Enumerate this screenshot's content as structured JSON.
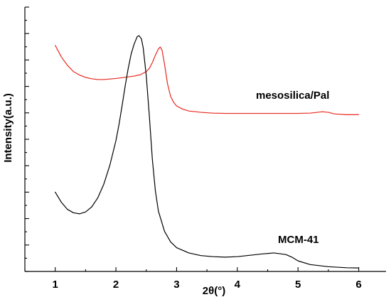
{
  "chart_data": {
    "type": "line",
    "xlabel": "2θ(°)",
    "ylabel": "Intensity(a.u.)",
    "xlim": [
      0.5,
      6.45
    ],
    "ylim": [
      0,
      10
    ],
    "x_ticks": [
      1,
      2,
      3,
      4,
      5,
      6
    ],
    "grid": false,
    "colors": {
      "mesosilica_pal": "#e8281e",
      "mcm41": "#000000",
      "axis": "#000000"
    },
    "series": [
      {
        "name": "mesosilica/Pal",
        "color": "#e8281e",
        "x": [
          1.0,
          1.1,
          1.2,
          1.3,
          1.4,
          1.5,
          1.6,
          1.7,
          1.8,
          1.9,
          2.0,
          2.1,
          2.2,
          2.3,
          2.4,
          2.5,
          2.55,
          2.6,
          2.65,
          2.7,
          2.73,
          2.76,
          2.8,
          2.85,
          2.9,
          2.95,
          3.0,
          3.1,
          3.2,
          3.4,
          3.6,
          3.8,
          4.0,
          4.5,
          5.0,
          5.2,
          5.4,
          5.5,
          5.6,
          5.8,
          6.0
        ],
        "y": [
          8.55,
          8.12,
          7.8,
          7.56,
          7.43,
          7.34,
          7.29,
          7.26,
          7.26,
          7.28,
          7.3,
          7.33,
          7.36,
          7.39,
          7.44,
          7.56,
          7.68,
          7.9,
          8.18,
          8.42,
          8.49,
          8.37,
          7.85,
          7.1,
          6.63,
          6.4,
          6.26,
          6.14,
          6.07,
          6.02,
          5.99,
          5.98,
          5.98,
          5.98,
          5.98,
          5.99,
          6.04,
          6.02,
          5.96,
          5.93,
          5.93
        ]
      },
      {
        "name": "MCM-41",
        "color": "#000000",
        "x": [
          1.0,
          1.1,
          1.2,
          1.3,
          1.4,
          1.5,
          1.6,
          1.7,
          1.8,
          1.9,
          2.0,
          2.05,
          2.1,
          2.15,
          2.2,
          2.25,
          2.3,
          2.35,
          2.38,
          2.42,
          2.45,
          2.5,
          2.55,
          2.6,
          2.65,
          2.7,
          2.8,
          2.9,
          3.0,
          3.2,
          3.4,
          3.6,
          3.8,
          4.0,
          4.2,
          4.4,
          4.6,
          4.8,
          4.9,
          5.0,
          5.2,
          5.5,
          5.8,
          6.0
        ],
        "y": [
          3.0,
          2.62,
          2.35,
          2.22,
          2.18,
          2.25,
          2.44,
          2.78,
          3.3,
          4.02,
          4.95,
          5.55,
          6.25,
          6.98,
          7.65,
          8.22,
          8.6,
          8.88,
          8.92,
          8.8,
          8.45,
          7.4,
          5.9,
          4.25,
          3.05,
          2.28,
          1.52,
          1.12,
          0.9,
          0.7,
          0.6,
          0.56,
          0.54,
          0.56,
          0.61,
          0.66,
          0.7,
          0.64,
          0.54,
          0.4,
          0.26,
          0.18,
          0.14,
          0.13
        ]
      }
    ],
    "series_labels": {
      "mesosilica_pal": "mesosilica/Pal",
      "mcm41": "MCM-41"
    }
  }
}
